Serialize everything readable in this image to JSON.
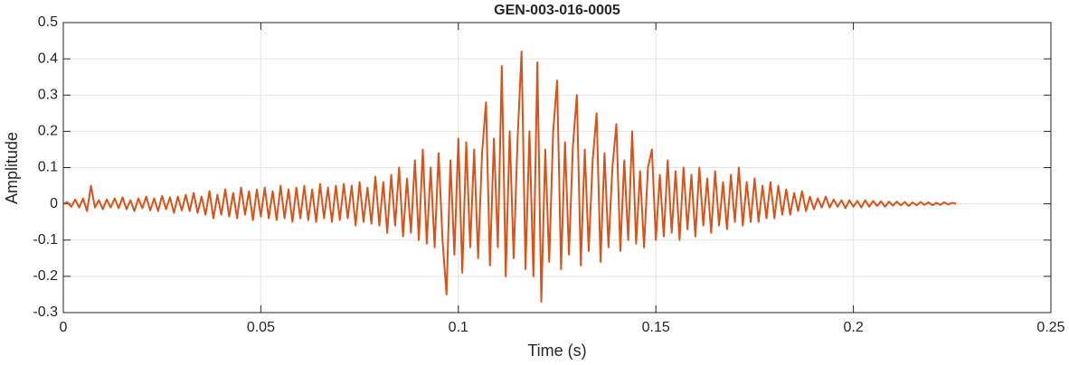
{
  "chart_data": {
    "type": "line",
    "title": "GEN-003-016-0005",
    "x_label": "Time (s)",
    "y_label": "Amplitude",
    "color": "#D95319",
    "grid": true,
    "xlim": [
      0,
      0.25
    ],
    "xticks": [
      0,
      0.05,
      0.1,
      0.15,
      0.2,
      0.25
    ],
    "ylim": [
      -0.3,
      0.5
    ],
    "yticks": [
      -0.3,
      -0.2,
      -0.1,
      0,
      0.1,
      0.2,
      0.3,
      0.4,
      0.5
    ],
    "x": [
      0,
      0.001,
      0.002,
      0.003,
      0.004,
      0.005,
      0.006,
      0.007,
      0.008,
      0.009,
      0.01,
      0.011,
      0.012,
      0.013,
      0.014,
      0.015,
      0.016,
      0.017,
      0.018,
      0.019,
      0.02,
      0.021,
      0.022,
      0.023,
      0.024,
      0.025,
      0.026,
      0.027,
      0.028,
      0.029,
      0.03,
      0.031,
      0.032,
      0.033,
      0.034,
      0.035,
      0.036,
      0.037,
      0.038,
      0.039,
      0.04,
      0.041,
      0.042,
      0.043,
      0.044,
      0.045,
      0.046,
      0.047,
      0.048,
      0.049,
      0.05,
      0.051,
      0.052,
      0.053,
      0.054,
      0.055,
      0.056,
      0.057,
      0.058,
      0.059,
      0.06,
      0.061,
      0.062,
      0.063,
      0.064,
      0.065,
      0.066,
      0.067,
      0.068,
      0.069,
      0.07,
      0.071,
      0.072,
      0.073,
      0.074,
      0.075,
      0.076,
      0.077,
      0.078,
      0.079,
      0.08,
      0.081,
      0.082,
      0.083,
      0.084,
      0.085,
      0.086,
      0.087,
      0.088,
      0.089,
      0.09,
      0.091,
      0.092,
      0.093,
      0.094,
      0.095,
      0.096,
      0.097,
      0.098,
      0.099,
      0.1,
      0.101,
      0.102,
      0.103,
      0.104,
      0.105,
      0.106,
      0.107,
      0.108,
      0.109,
      0.11,
      0.111,
      0.112,
      0.113,
      0.114,
      0.115,
      0.116,
      0.117,
      0.118,
      0.119,
      0.12,
      0.121,
      0.122,
      0.123,
      0.124,
      0.125,
      0.126,
      0.127,
      0.128,
      0.129,
      0.13,
      0.131,
      0.132,
      0.133,
      0.134,
      0.135,
      0.136,
      0.137,
      0.138,
      0.139,
      0.14,
      0.141,
      0.142,
      0.143,
      0.144,
      0.145,
      0.146,
      0.147,
      0.148,
      0.149,
      0.15,
      0.151,
      0.152,
      0.153,
      0.154,
      0.155,
      0.156,
      0.157,
      0.158,
      0.159,
      0.16,
      0.161,
      0.162,
      0.163,
      0.164,
      0.165,
      0.166,
      0.167,
      0.168,
      0.169,
      0.17,
      0.171,
      0.172,
      0.173,
      0.174,
      0.175,
      0.176,
      0.177,
      0.178,
      0.179,
      0.18,
      0.181,
      0.182,
      0.183,
      0.184,
      0.185,
      0.186,
      0.187,
      0.188,
      0.189,
      0.19,
      0.191,
      0.192,
      0.193,
      0.194,
      0.195,
      0.196,
      0.197,
      0.198,
      0.199,
      0.2,
      0.201,
      0.202,
      0.203,
      0.204,
      0.205,
      0.206,
      0.207,
      0.208,
      0.209,
      0.21,
      0.211,
      0.212,
      0.213,
      0.214,
      0.215,
      0.216,
      0.217,
      0.218,
      0.219,
      0.22,
      0.221,
      0.222,
      0.223,
      0.224,
      0.225,
      0.226
    ],
    "values": [
      0,
      0.005,
      -0.008,
      0.012,
      -0.01,
      0.015,
      -0.02,
      0.05,
      -0.01,
      0.01,
      -0.015,
      0.012,
      -0.01,
      0.015,
      -0.012,
      0.018,
      -0.015,
      0.01,
      -0.02,
      0.015,
      -0.012,
      0.02,
      -0.018,
      0.015,
      -0.02,
      0.022,
      -0.015,
      0.018,
      -0.025,
      0.02,
      -0.018,
      0.025,
      -0.02,
      0.03,
      -0.025,
      0.02,
      -0.03,
      0.035,
      -0.04,
      0.025,
      -0.03,
      0.04,
      -0.035,
      0.03,
      -0.04,
      0.045,
      -0.03,
      0.035,
      -0.045,
      0.04,
      -0.035,
      0.045,
      -0.04,
      0.035,
      -0.045,
      0.05,
      -0.04,
      0.04,
      -0.05,
      0.045,
      -0.04,
      0.05,
      -0.045,
      0.04,
      -0.05,
      0.055,
      -0.04,
      0.045,
      -0.05,
      0.05,
      -0.045,
      0.055,
      -0.04,
      0.05,
      -0.06,
      0.06,
      -0.05,
      0.045,
      -0.055,
      0.075,
      -0.06,
      0.06,
      -0.08,
      0.08,
      -0.06,
      0.1,
      -0.09,
      0.07,
      -0.08,
      0.12,
      -0.1,
      0.15,
      -0.11,
      0.1,
      -0.12,
      0.14,
      -0.1,
      -0.25,
      0.12,
      -0.14,
      0.18,
      -0.19,
      0.17,
      -0.12,
      0.15,
      -0.15,
      0.14,
      0.28,
      -0.17,
      0.18,
      -0.12,
      0.38,
      -0.2,
      0.2,
      -0.15,
      0.18,
      0.42,
      -0.18,
      0.2,
      -0.2,
      0.39,
      -0.27,
      0.15,
      -0.16,
      0.2,
      0.34,
      -0.18,
      0.17,
      -0.14,
      0.16,
      0.3,
      -0.17,
      0.15,
      -0.13,
      0.12,
      0.25,
      -0.16,
      0.14,
      -0.12,
      0.1,
      0.22,
      -0.13,
      0.12,
      -0.1,
      0.2,
      -0.11,
      0.09,
      -0.12,
      0.1,
      0.15,
      -0.1,
      0.08,
      -0.09,
      0.12,
      -0.08,
      0.09,
      -0.1,
      0.1,
      -0.07,
      0.08,
      -0.09,
      0.1,
      -0.06,
      0.07,
      -0.08,
      0.09,
      -0.06,
      0.06,
      -0.07,
      0.08,
      -0.05,
      0.1,
      -0.06,
      0.06,
      -0.05,
      0.07,
      -0.05,
      0.05,
      -0.04,
      0.06,
      -0.04,
      0.05,
      -0.03,
      0.04,
      -0.03,
      0.03,
      -0.02,
      0.035,
      -0.02,
      0.02,
      -0.015,
      0.015,
      -0.01,
      0.02,
      -0.01,
      0.012,
      -0.008,
      0.01,
      -0.012,
      0.01,
      -0.008,
      0.008,
      -0.01,
      0.01,
      -0.008,
      0.008,
      -0.006,
      0.007,
      -0.008,
      0.006,
      -0.005,
      0.006,
      -0.004,
      0.005,
      -0.006,
      0.004,
      -0.004,
      0.005,
      -0.003,
      0.004,
      -0.004,
      0.003,
      -0.003,
      0.004,
      -0.002,
      0.003,
      0
    ]
  }
}
